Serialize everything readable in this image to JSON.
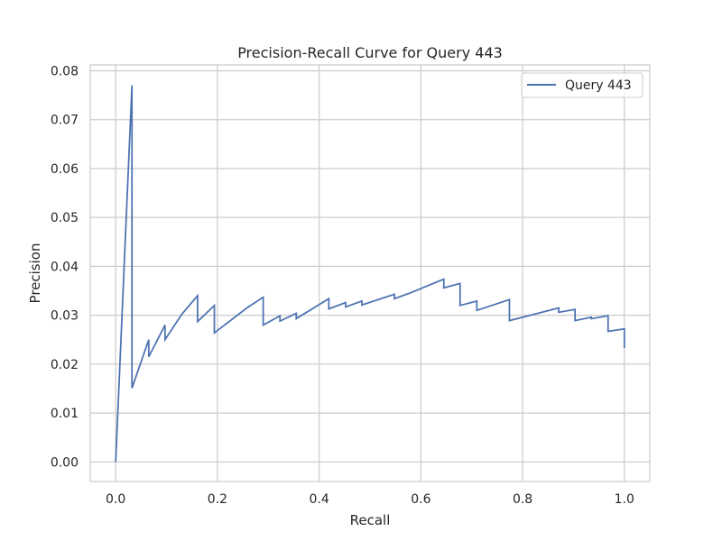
{
  "chart_data": {
    "type": "line",
    "title": "Precision-Recall Curve for Query 443",
    "xlabel": "Recall",
    "ylabel": "Precision",
    "xlim": [
      -0.05,
      1.05
    ],
    "ylim": [
      -0.004,
      0.0812
    ],
    "xticks": [
      "0.0",
      "0.2",
      "0.4",
      "0.6",
      "0.8",
      "1.0"
    ],
    "xtick_values": [
      0.0,
      0.2,
      0.4,
      0.6,
      0.8,
      1.0
    ],
    "yticks": [
      "0.00",
      "0.01",
      "0.02",
      "0.03",
      "0.04",
      "0.05",
      "0.06",
      "0.07",
      "0.08"
    ],
    "ytick_values": [
      0.0,
      0.01,
      0.02,
      0.03,
      0.04,
      0.05,
      0.06,
      0.07,
      0.08
    ],
    "grid": true,
    "legend_position": "upper right",
    "series": [
      {
        "name": "Query 443",
        "color": "#4c72b0",
        "x": [
          0.0,
          0.032,
          0.032,
          0.065,
          0.065,
          0.097,
          0.097,
          0.13,
          0.161,
          0.161,
          0.194,
          0.194,
          0.258,
          0.29,
          0.29,
          0.323,
          0.323,
          0.355,
          0.355,
          0.419,
          0.419,
          0.452,
          0.452,
          0.484,
          0.484,
          0.548,
          0.548,
          0.58,
          0.645,
          0.645,
          0.677,
          0.677,
          0.71,
          0.71,
          0.774,
          0.774,
          0.871,
          0.871,
          0.903,
          0.903,
          0.935,
          0.935,
          0.968,
          0.968,
          1.0,
          1.0
        ],
        "y": [
          0.0,
          0.077,
          0.0151,
          0.025,
          0.0215,
          0.028,
          0.025,
          0.0302,
          0.034,
          0.0287,
          0.032,
          0.0264,
          0.0315,
          0.0337,
          0.028,
          0.0299,
          0.0288,
          0.0304,
          0.0293,
          0.0334,
          0.0313,
          0.0326,
          0.0317,
          0.0329,
          0.0321,
          0.0343,
          0.0334,
          0.0346,
          0.0374,
          0.0356,
          0.0365,
          0.032,
          0.0329,
          0.031,
          0.0332,
          0.0289,
          0.0315,
          0.0306,
          0.0312,
          0.0289,
          0.0296,
          0.0293,
          0.0299,
          0.0267,
          0.0272,
          0.0233
        ]
      }
    ]
  }
}
